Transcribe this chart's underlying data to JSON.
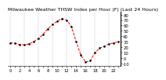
{
  "hours": [
    0,
    1,
    2,
    3,
    4,
    5,
    6,
    7,
    8,
    9,
    10,
    11,
    12,
    13,
    14,
    15,
    16,
    17,
    18,
    19,
    20,
    21,
    22,
    23
  ],
  "values": [
    28,
    27,
    25,
    24,
    26,
    30,
    36,
    44,
    54,
    62,
    68,
    73,
    70,
    58,
    30,
    5,
    -8,
    -5,
    10,
    18,
    22,
    26,
    28,
    30
  ],
  "line_color": "#ff0000",
  "marker_color": "#000000",
  "bg_color": "#ffffff",
  "grid_color": "#888888",
  "title": "Milwaukee Weather THSW Index per Hour (F) (Last 24 Hours)",
  "title_fontsize": 4.5,
  "tick_fontsize": 3.8,
  "ylim": [
    -15,
    85
  ],
  "yticks": [
    -10,
    0,
    10,
    20,
    30,
    40,
    50,
    60,
    70,
    80
  ],
  "ytick_labels": [
    "-10",
    "0",
    "10",
    "20",
    "30",
    "40",
    "50",
    "60",
    "70",
    "80"
  ],
  "line_width": 0.7,
  "marker_size": 1.5,
  "grid_every": 3
}
